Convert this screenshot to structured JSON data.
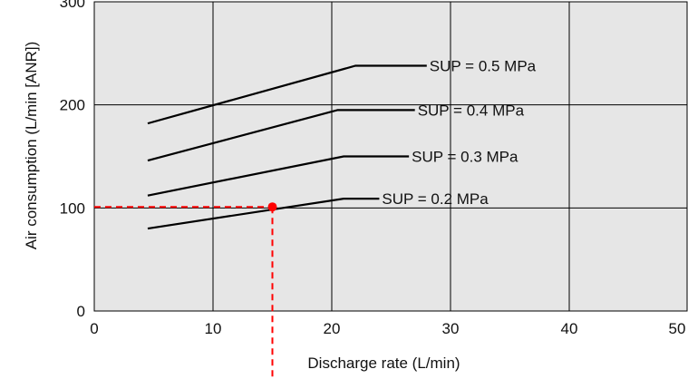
{
  "chart_data": {
    "type": "line",
    "title": "",
    "xlabel": "Discharge rate (L/min)",
    "ylabel": "Air consumption (L/min [ANR])",
    "xlim": [
      0,
      50
    ],
    "ylim": [
      0,
      300
    ],
    "x_ticks": [
      0,
      10,
      20,
      30,
      40,
      50
    ],
    "y_ticks": [
      0,
      100,
      200,
      300
    ],
    "grid": true,
    "plot_background": "#e6e6e6",
    "line_color": "#000000",
    "marker_color": "#ff0000",
    "series": [
      {
        "name": "SUP = 0.5 MPa",
        "points": [
          [
            4.5,
            182
          ],
          [
            22,
            238
          ],
          [
            28,
            238
          ]
        ]
      },
      {
        "name": "SUP = 0.4 MPa",
        "points": [
          [
            4.5,
            146
          ],
          [
            20.5,
            195
          ],
          [
            27,
            195
          ]
        ]
      },
      {
        "name": "SUP = 0.3 MPa",
        "points": [
          [
            4.5,
            112
          ],
          [
            21,
            150
          ],
          [
            26.5,
            150
          ]
        ]
      },
      {
        "name": "SUP = 0.2 MPa",
        "points": [
          [
            4.5,
            80
          ],
          [
            21,
            109
          ],
          [
            24,
            109
          ]
        ]
      }
    ],
    "annotation": {
      "marker": {
        "x": 15,
        "y": 101
      },
      "style": "dashed-guide-lines"
    }
  }
}
